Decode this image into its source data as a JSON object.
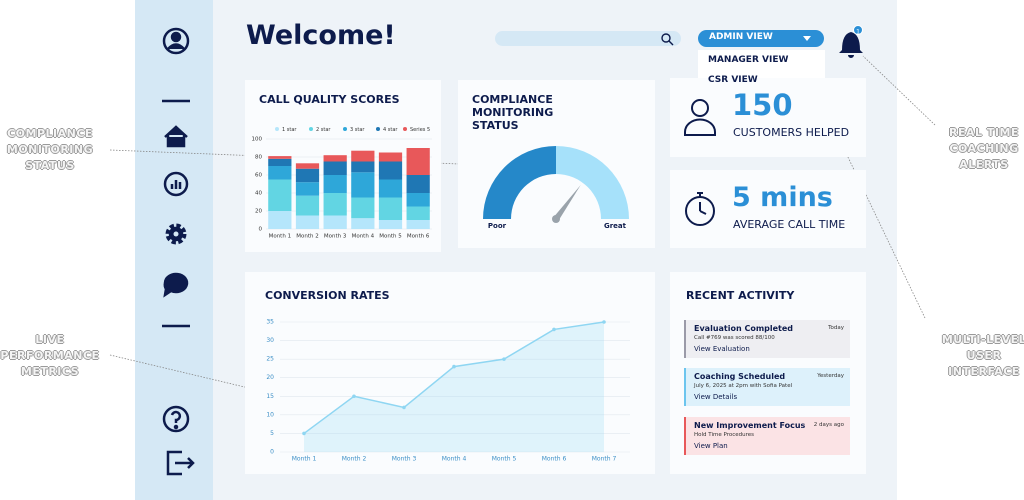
{
  "callouts": [
    "COMPLIANCE MONITORING STATUS",
    "LIVE PERFORMANCE METRICS",
    "REAL TIME COACHING ALERTS",
    "MULTI-LEVEL USER INTERFACE"
  ],
  "header": {
    "title": "Welcome!",
    "view_button": "ADMIN VIEW",
    "view_menu": [
      "MANAGER VIEW",
      "CSR VIEW"
    ],
    "notification_count": 1
  },
  "stats": [
    {
      "value": "150",
      "label": "CUSTOMERS HELPED"
    },
    {
      "value": "5 mins",
      "label": "AVERAGE CALL TIME"
    }
  ],
  "recent_activity": {
    "title": "RECENT ACTIVITY",
    "items": [
      {
        "title": "Evaluation Completed",
        "time": "Today",
        "detail": "Call #769 was scored 88/100",
        "link": "View Evaluation"
      },
      {
        "title": "Coaching Scheduled",
        "time": "Yesterday",
        "detail": "July 6, 2025 at 2pm with Sofia Patel",
        "link": "View Details"
      },
      {
        "title": "New Improvement Focus",
        "time": "2 days ago",
        "detail": "Hold Time Procedures",
        "link": "View Plan"
      }
    ]
  },
  "chart_data": [
    {
      "type": "bar",
      "stacked": true,
      "title": "CALL QUALITY SCORES",
      "categories": [
        "Month 1",
        "Month 2",
        "Month 3",
        "Month 4",
        "Month 5",
        "Month 6"
      ],
      "series": [
        {
          "name": "1 star",
          "color": "#b5e6fb",
          "values": [
            20,
            15,
            15,
            12,
            10,
            10
          ]
        },
        {
          "name": "2 star",
          "color": "#62d5e3",
          "values": [
            35,
            22,
            25,
            23,
            25,
            15
          ]
        },
        {
          "name": "3 star",
          "color": "#2ea7d9",
          "values": [
            15,
            15,
            20,
            28,
            20,
            15
          ]
        },
        {
          "name": "4 star",
          "color": "#1f77b4",
          "values": [
            8,
            15,
            15,
            12,
            20,
            20
          ]
        },
        {
          "name": "Series 5",
          "color": "#e8585a",
          "values": [
            3,
            6,
            7,
            12,
            10,
            30
          ]
        }
      ],
      "ylim": [
        0,
        100
      ],
      "yticks": [
        0,
        20,
        40,
        60,
        80,
        100
      ],
      "grid": true,
      "legend": "top"
    },
    {
      "type": "gauge",
      "title": "COMPLIANCE MONITORING STATUS",
      "value": 70,
      "range": [
        0,
        100
      ],
      "min_label": "Poor",
      "max_label": "Great",
      "colors": [
        "#2588c9",
        "#a6e1fa",
        "#9aa3ab"
      ]
    },
    {
      "type": "line",
      "title": "CONVERSION RATES",
      "categories": [
        "Month 1",
        "Month 2",
        "Month 3",
        "Month 4",
        "Month 5",
        "Month 6",
        "Month 7"
      ],
      "values": [
        5,
        15,
        12,
        23,
        25,
        33,
        35
      ],
      "color": "#8fd6f2",
      "fill": true,
      "ylim": [
        0,
        35
      ],
      "yticks": [
        0,
        5,
        10,
        15,
        20,
        25,
        30,
        35
      ],
      "grid": true
    }
  ]
}
